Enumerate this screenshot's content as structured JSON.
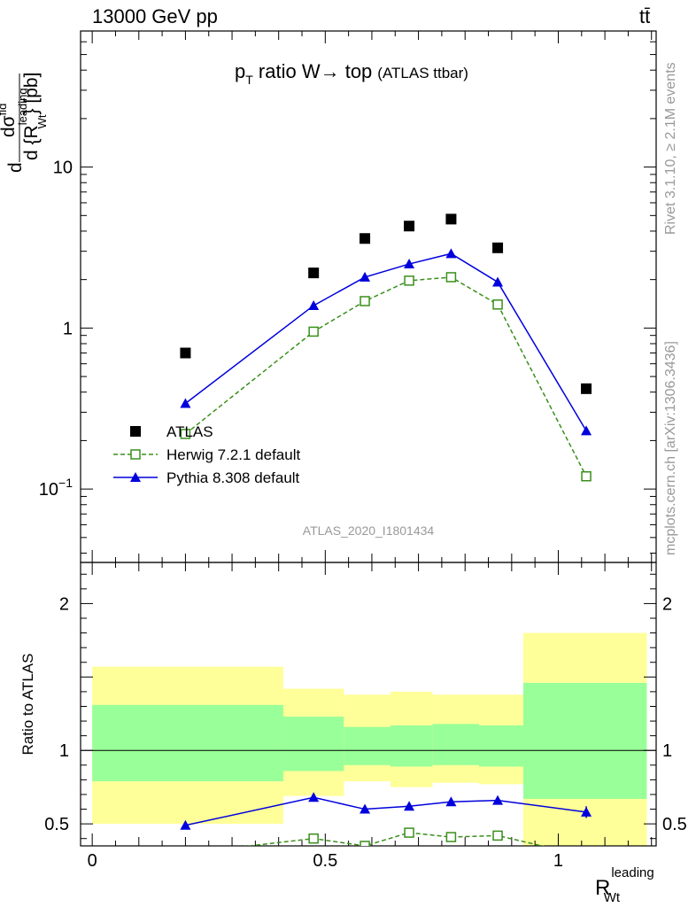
{
  "header": {
    "beam": "13000 GeV pp",
    "process": "tt̄"
  },
  "side_text": {
    "rivet": "Rivet 3.1.10, ≥ 2.1M events",
    "mcplots": "mcplots.cern.ch [arXiv:1306.3436]"
  },
  "analysis_id": "ATLAS_2020_I1801434",
  "colors": {
    "data": "#000000",
    "herwig": "#3a8f1c",
    "pythia": "#0000dd",
    "band_inner": "#99ff99",
    "band_outer": "#ffff99"
  },
  "chart_data": [
    {
      "type": "line",
      "panel": "main",
      "title_main": "p",
      "title_sub": "T",
      "title_rest": " ratio W→ top",
      "title_note": "(ATLAS ttbar)",
      "ylabel": "d σ^fid / d {R_Wt^leading} [pb]",
      "ylabel_parts": {
        "d": "d",
        "num": "dσ",
        "num_sup": "fid",
        "den": "d {R",
        "den_sup": "leading",
        "den_sub": "Wt",
        "den_close": "} [pb]"
      },
      "y_scale": "log",
      "ylim": [
        0.035,
        70
      ],
      "xlim": [
        -0.025,
        1.21
      ],
      "y_tick_labels": [
        {
          "value": 0.1,
          "base": "10",
          "exp": "−1"
        },
        {
          "value": 1,
          "base": "1",
          "exp": ""
        },
        {
          "value": 10,
          "base": "10",
          "exp": ""
        }
      ],
      "legend": [
        {
          "key": "data",
          "label": "ATLAS"
        },
        {
          "key": "herwig",
          "label": "Herwig 7.2.1 default"
        },
        {
          "key": "pythia",
          "label": "Pythia 8.308 default"
        }
      ],
      "series": [
        {
          "key": "data",
          "marker": "square-filled",
          "x": [
            0.2,
            0.475,
            0.585,
            0.68,
            0.77,
            0.87,
            1.06
          ],
          "y": [
            0.7,
            2.2,
            3.6,
            4.3,
            4.75,
            3.15,
            0.42
          ]
        },
        {
          "key": "herwig",
          "marker": "square-open",
          "line": "dashed",
          "x": [
            0.2,
            0.475,
            0.585,
            0.68,
            0.77,
            0.87,
            1.06
          ],
          "y": [
            0.22,
            0.95,
            1.47,
            1.97,
            2.07,
            1.4,
            0.12
          ]
        },
        {
          "key": "pythia",
          "marker": "triangle-filled",
          "line": "solid",
          "x": [
            0.2,
            0.475,
            0.585,
            0.68,
            0.77,
            0.87,
            1.06
          ],
          "y": [
            0.34,
            1.38,
            2.07,
            2.5,
            2.9,
            1.93,
            0.23
          ]
        }
      ]
    },
    {
      "type": "line",
      "panel": "ratio",
      "ylabel": "Ratio to ATLAS",
      "xlabel_main": "R",
      "xlabel_sub": "Wt",
      "xlabel_sup": "leading",
      "ylim": [
        0.35,
        2.28
      ],
      "xlim": [
        -0.025,
        1.21
      ],
      "y_tick_labels": [
        {
          "value": 0.5,
          "label": "0.5"
        },
        {
          "value": 1,
          "label": "1"
        },
        {
          "value": 2,
          "label": "2"
        }
      ],
      "x_tick_labels": [
        {
          "value": 0,
          "label": "0"
        },
        {
          "value": 0.5,
          "label": "0.5"
        },
        {
          "value": 1,
          "label": "1"
        }
      ],
      "bands": [
        {
          "x0": 0.0,
          "x1": 0.41,
          "outer": [
            0.5,
            1.57
          ],
          "inner": [
            0.79,
            1.31
          ]
        },
        {
          "x0": 0.41,
          "x1": 0.54,
          "outer": [
            0.69,
            1.42
          ],
          "inner": [
            0.86,
            1.23
          ]
        },
        {
          "x0": 0.54,
          "x1": 0.64,
          "outer": [
            0.79,
            1.38
          ],
          "inner": [
            0.9,
            1.16
          ]
        },
        {
          "x0": 0.64,
          "x1": 0.73,
          "outer": [
            0.75,
            1.4
          ],
          "inner": [
            0.89,
            1.17
          ]
        },
        {
          "x0": 0.73,
          "x1": 0.83,
          "outer": [
            0.78,
            1.38
          ],
          "inner": [
            0.9,
            1.18
          ]
        },
        {
          "x0": 0.83,
          "x1": 0.925,
          "outer": [
            0.77,
            1.38
          ],
          "inner": [
            0.89,
            1.17
          ]
        },
        {
          "x0": 0.925,
          "x1": 1.19,
          "outer": [
            0.0,
            1.8
          ],
          "inner": [
            0.67,
            1.46
          ]
        }
      ],
      "series": [
        {
          "key": "pythia",
          "marker": "triangle-filled",
          "line": "solid",
          "x": [
            0.2,
            0.475,
            0.585,
            0.68,
            0.77,
            0.87,
            1.06
          ],
          "y": [
            0.49,
            0.68,
            0.6,
            0.62,
            0.65,
            0.66,
            0.58
          ],
          "err": [
            0.025,
            0.025,
            0.02,
            0.02,
            0.02,
            0.02,
            0.04
          ]
        },
        {
          "key": "herwig",
          "marker": "square-open",
          "line": "dashed",
          "x": [
            0.2,
            0.475,
            0.585,
            0.68,
            0.77,
            0.87,
            1.06
          ],
          "y": [
            0.3,
            0.4,
            0.35,
            0.44,
            0.41,
            0.42,
            0.28
          ]
        }
      ]
    }
  ]
}
